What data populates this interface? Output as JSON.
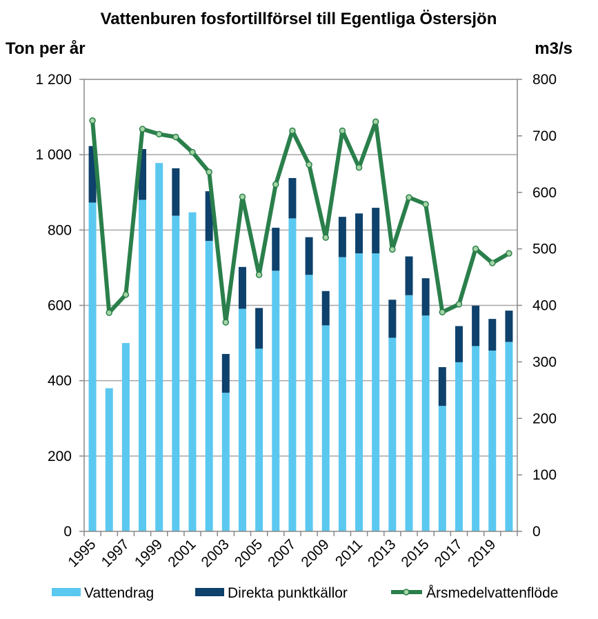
{
  "chart_data": {
    "type": "bar+line",
    "title": "Vattenburen fosfortillförsel till Egentliga Östersjön",
    "ylabel_left": "Ton per år",
    "ylabel_right": "m3/s",
    "ylim_left": [
      0,
      1200
    ],
    "ylim_right": [
      0,
      800
    ],
    "yticks_left": [
      0,
      200,
      400,
      600,
      800,
      1000,
      1200
    ],
    "yticks_left_labels": [
      "0",
      "200",
      "400",
      "600",
      "800",
      "1 000",
      "1 200"
    ],
    "yticks_right": [
      0,
      100,
      200,
      300,
      400,
      500,
      600,
      700,
      800
    ],
    "yticks_right_labels": [
      "0",
      "100",
      "200",
      "300",
      "400",
      "500",
      "600",
      "700",
      "800"
    ],
    "categories": [
      "1995",
      "1996",
      "1997",
      "1998",
      "1999",
      "2000",
      "2001",
      "2002",
      "2003",
      "2004",
      "2005",
      "2006",
      "2007",
      "2008",
      "2009",
      "2010",
      "2011",
      "2012",
      "2013",
      "2014",
      "2015",
      "2016",
      "2017",
      "2018",
      "2019",
      "2020"
    ],
    "x_tick_labels_shown": [
      "1995",
      "1997",
      "1999",
      "2001",
      "2003",
      "2005",
      "2007",
      "2009",
      "2011",
      "2013",
      "2015",
      "2017",
      "2019"
    ],
    "series": [
      {
        "name": "Vattendrag",
        "type": "bar-stacked",
        "axis": "left",
        "color": "#5bc8f0",
        "values": [
          873,
          380,
          500,
          880,
          978,
          838,
          847,
          771,
          368,
          591,
          485,
          692,
          831,
          681,
          547,
          728,
          738,
          738,
          514,
          627,
          573,
          333,
          449,
          492,
          480,
          503
        ]
      },
      {
        "name": "Direkta punktkällor",
        "type": "bar-stacked",
        "axis": "left",
        "color": "#0e416b",
        "values": [
          150,
          0,
          0,
          135,
          0,
          126,
          0,
          132,
          103,
          111,
          108,
          114,
          107,
          100,
          91,
          107,
          106,
          121,
          101,
          103,
          99,
          103,
          96,
          107,
          84,
          83
        ]
      },
      {
        "name": "Årsmedelvattenflöde",
        "type": "line",
        "axis": "right",
        "color": "#2a7f4b",
        "marker_color": "#a6d5a6",
        "values": [
          727,
          387,
          419,
          712,
          703,
          698,
          671,
          636,
          370,
          592,
          454,
          614,
          709,
          649,
          520,
          709,
          644,
          725,
          499,
          591,
          579,
          388,
          402,
          500,
          475,
          492
        ]
      }
    ],
    "grid": true,
    "legend_position": "bottom"
  }
}
